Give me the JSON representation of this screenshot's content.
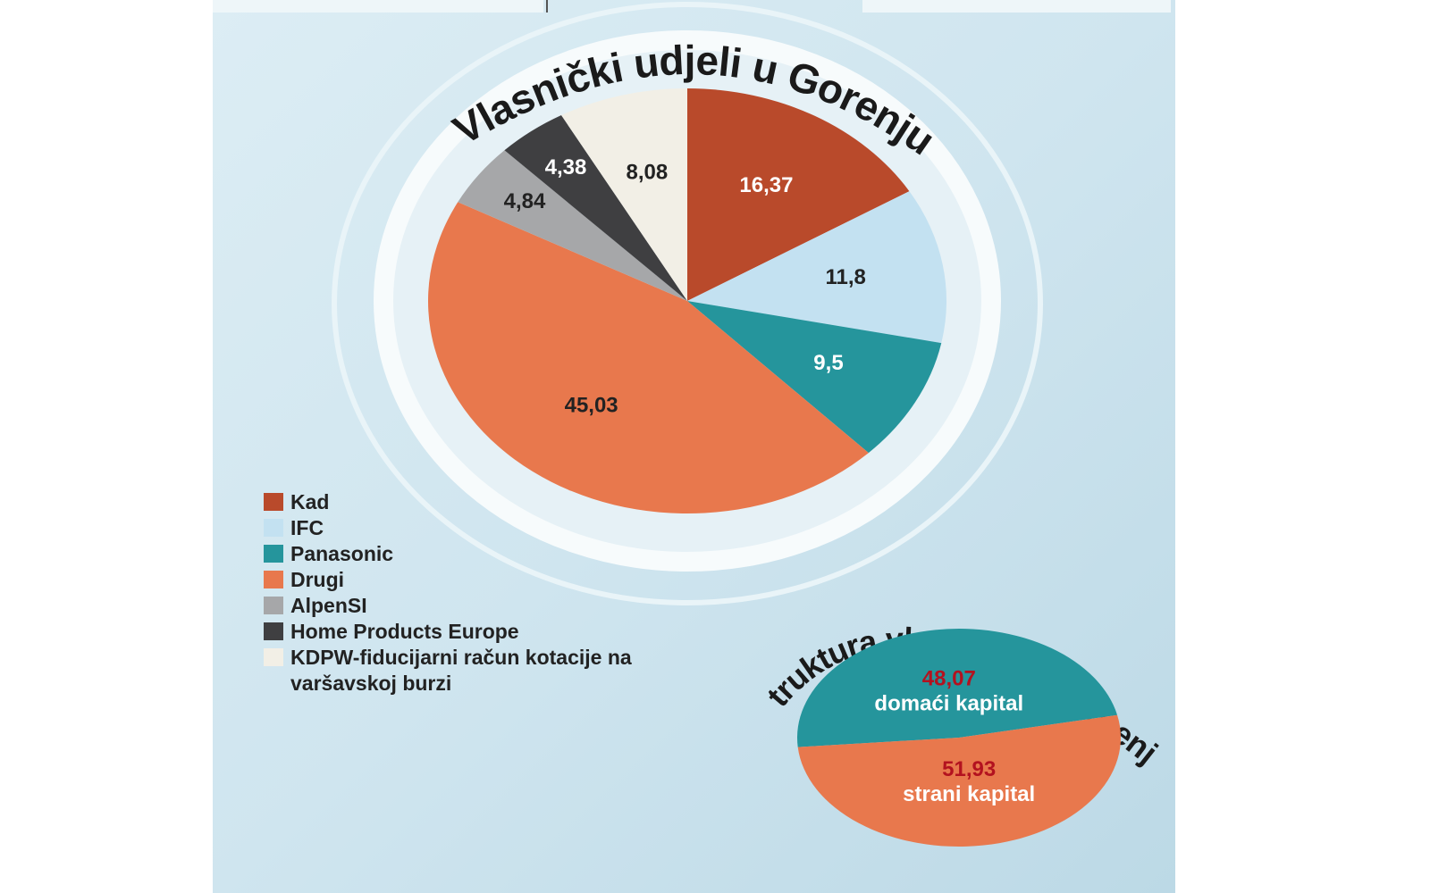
{
  "chart_data": [
    {
      "type": "pie",
      "title": "Vlasnički udjeli u Gorenju",
      "categories": [
        "Kad",
        "IFC",
        "Panasonic",
        "Drugi",
        "AlpenSI",
        "Home Products Europe",
        "KDPW-fiducijarni račun kotacije na varšavskoj burzi"
      ],
      "values": [
        16.37,
        11.8,
        9.5,
        45.03,
        4.84,
        4.38,
        8.08
      ],
      "value_labels": [
        "16,37",
        "11,8",
        "9,5",
        "45,03",
        "4,84",
        "4,38",
        "8,08"
      ],
      "colors": [
        "#b94a2b",
        "#c3e1f1",
        "#25959c",
        "#e8784d",
        "#a6a7a9",
        "#3f3f41",
        "#f2efe6"
      ],
      "legend": true
    },
    {
      "type": "pie",
      "title": "Struktura vlasništva u Gorenju",
      "categories": [
        "domaći kapital",
        "strani kapital"
      ],
      "values": [
        48.07,
        51.93
      ],
      "value_labels": [
        "48,07",
        "51,93"
      ],
      "colors": [
        "#25959c",
        "#e8784d"
      ]
    }
  ]
}
